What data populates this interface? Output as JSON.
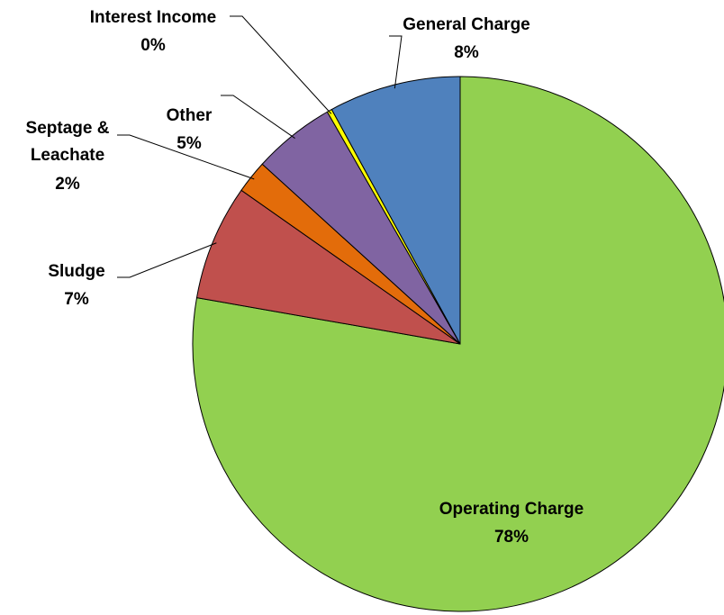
{
  "chart_data": {
    "type": "pie",
    "categories": [
      "Operating Charge",
      "Sludge",
      "Septage & Leachate",
      "Other",
      "Interest Income",
      "General Charge"
    ],
    "values": [
      78,
      7,
      2,
      5,
      0.3,
      8
    ],
    "value_labels": [
      "78%",
      "7%",
      "2%",
      "5%",
      "0%",
      "8%"
    ],
    "colors": [
      "#92d050",
      "#c0504d",
      "#e36c0a",
      "#8064a2",
      "#ffff00",
      "#4f81bd"
    ]
  }
}
